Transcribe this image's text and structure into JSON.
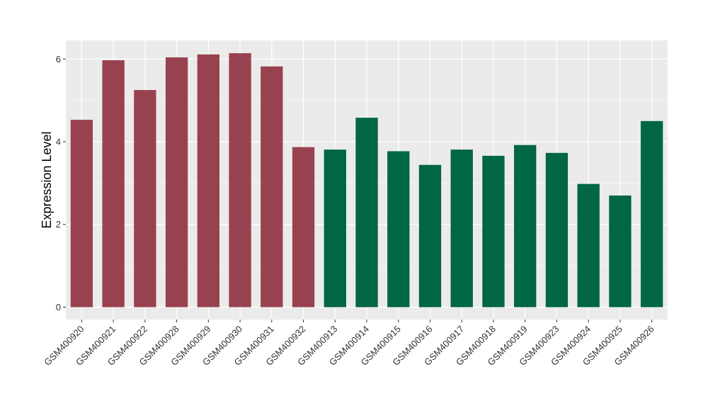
{
  "chart_data": {
    "type": "bar",
    "title": "",
    "xlabel": "",
    "ylabel": "Expression Level",
    "ylim": [
      -0.3,
      6.45
    ],
    "yticks": [
      0,
      2,
      4,
      6
    ],
    "grid": true,
    "legend": "none",
    "categories": [
      "GSM400920",
      "GSM400921",
      "GSM400922",
      "GSM400928",
      "GSM400929",
      "GSM400930",
      "GSM400931",
      "GSM400932",
      "GSM400913",
      "GSM400914",
      "GSM400915",
      "GSM400916",
      "GSM400917",
      "GSM400918",
      "GSM400919",
      "GSM400923",
      "GSM400924",
      "GSM400925",
      "GSM400926"
    ],
    "values": [
      4.53,
      5.97,
      5.25,
      6.04,
      6.11,
      6.14,
      5.82,
      3.87,
      3.81,
      4.58,
      3.77,
      3.44,
      3.81,
      3.66,
      3.92,
      3.73,
      2.98,
      2.7,
      4.5
    ],
    "group_colors": [
      "#99424f",
      "#99424f",
      "#99424f",
      "#99424f",
      "#99424f",
      "#99424f",
      "#99424f",
      "#99424f",
      "#006644",
      "#006644",
      "#006644",
      "#006644",
      "#006644",
      "#006644",
      "#006644",
      "#006644",
      "#006644",
      "#006644",
      "#006644"
    ],
    "panel_color": "#ebebeb",
    "grid_color": "#ffffff"
  }
}
